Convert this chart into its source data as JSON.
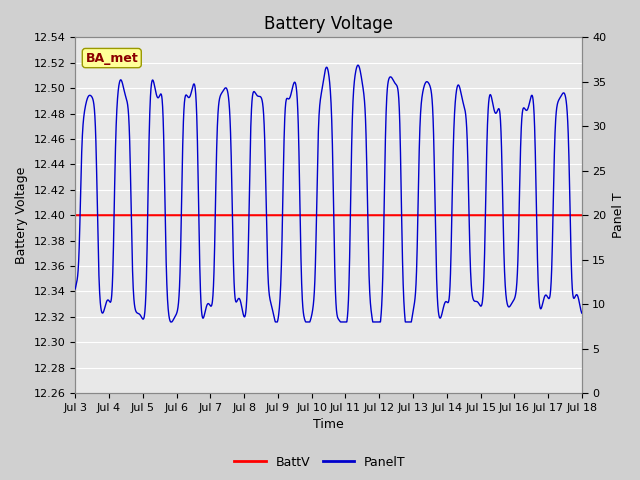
{
  "title": "Battery Voltage",
  "xlabel": "Time",
  "ylabel_left": "Battery Voltage",
  "ylabel_right": "Panel T",
  "ylim_left": [
    12.26,
    12.54
  ],
  "ylim_right": [
    0,
    40
  ],
  "yticks_left": [
    12.26,
    12.28,
    12.3,
    12.32,
    12.34,
    12.36,
    12.38,
    12.4,
    12.42,
    12.44,
    12.46,
    12.48,
    12.5,
    12.52,
    12.54
  ],
  "yticks_right": [
    0,
    5,
    10,
    15,
    20,
    25,
    30,
    35,
    40
  ],
  "xtick_labels": [
    "Jul 3",
    "Jul 4",
    "Jul 5",
    "Jul 6",
    "Jul 7",
    "Jul 8",
    "Jul 9",
    "Jul 10",
    "Jul 11",
    "Jul 12",
    "Jul 13",
    "Jul 14",
    "Jul 15",
    "Jul 16",
    "Jul 17",
    "Jul 18"
  ],
  "batt_v_value": 12.4,
  "batt_v_color": "#ff0000",
  "panel_t_color": "#0000cc",
  "annotation_text": "BA_met",
  "annotation_bg": "#ffff99",
  "annotation_border": "#999900",
  "annotation_text_color": "#8b0000",
  "figure_bg_color": "#d0d0d0",
  "inner_bg_color": "#e8e8e8",
  "grid_color": "#ffffff",
  "title_fontsize": 12,
  "axis_label_fontsize": 9,
  "tick_fontsize": 8,
  "legend_fontsize": 9
}
